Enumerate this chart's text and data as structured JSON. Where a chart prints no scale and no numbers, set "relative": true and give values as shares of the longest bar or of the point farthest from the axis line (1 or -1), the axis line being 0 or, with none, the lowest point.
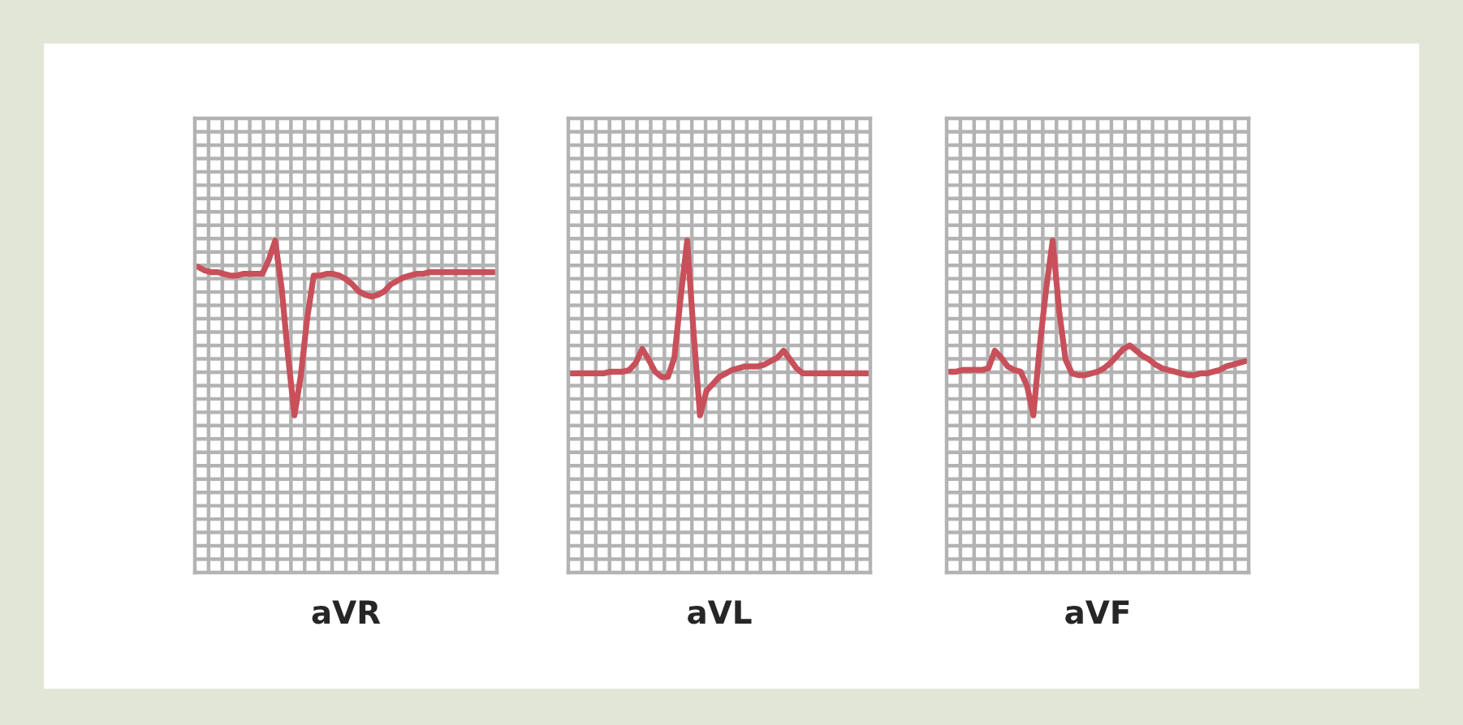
{
  "chart_data": [
    {
      "type": "line",
      "xlabel": "aVR",
      "relative": true,
      "grid": true,
      "color": "#c8505a",
      "categories": [
        null,
        null,
        null,
        null,
        null,
        null,
        null,
        null,
        null,
        null,
        null,
        null,
        null,
        null,
        null,
        null,
        null,
        null,
        null,
        null,
        null,
        null,
        null,
        null,
        null,
        null,
        null,
        null,
        null,
        null,
        null,
        null,
        null,
        null,
        null,
        null,
        null,
        null,
        null,
        null,
        null,
        null,
        null,
        null,
        null,
        null,
        null
      ],
      "values": [
        0.85,
        0.83,
        0.82,
        0.82,
        0.81,
        0.8,
        0.8,
        0.81,
        0.81,
        0.81,
        0.81,
        0.89,
        1.0,
        0.73,
        0.34,
        0,
        0.23,
        0.56,
        0.8,
        0.8,
        0.81,
        0.81,
        0.8,
        0.78,
        0.75,
        0.71,
        0.69,
        0.68,
        0.69,
        0.71,
        0.75,
        0.77,
        0.79,
        0.8,
        0.81,
        0.81,
        0.82,
        0.82,
        0.82,
        0.82,
        0.82,
        0.82,
        0.82,
        0.82,
        0.82,
        0.82,
        0.82
      ]
    },
    {
      "type": "line",
      "xlabel": "aVL",
      "relative": true,
      "grid": true,
      "color": "#c8505a",
      "categories": [
        null,
        null,
        null,
        null,
        null,
        null,
        null,
        null,
        null,
        null,
        null,
        null,
        null,
        null,
        null,
        null,
        null,
        null,
        null,
        null,
        null,
        null,
        null,
        null,
        null,
        null,
        null,
        null,
        null,
        null,
        null,
        null,
        null,
        null,
        null,
        null,
        null,
        null,
        null,
        null,
        null,
        null,
        null,
        null,
        null,
        null,
        null
      ],
      "values": [
        0.24,
        0.24,
        0.24,
        0.24,
        0.24,
        0.24,
        0.25,
        0.25,
        0.25,
        0.26,
        0.3,
        0.38,
        0.32,
        0.25,
        0.22,
        0.22,
        0.33,
        0.68,
        1.0,
        0.47,
        0,
        0.14,
        0.18,
        0.22,
        0.24,
        0.26,
        0.27,
        0.28,
        0.28,
        0.28,
        0.29,
        0.31,
        0.33,
        0.37,
        0.32,
        0.27,
        0.24,
        0.24,
        0.24,
        0.24,
        0.24,
        0.24,
        0.24,
        0.24,
        0.24,
        0.24,
        0.24
      ]
    },
    {
      "type": "line",
      "xlabel": "aVF",
      "relative": true,
      "grid": true,
      "color": "#c8505a",
      "categories": [
        null,
        null,
        null,
        null,
        null,
        null,
        null,
        null,
        null,
        null,
        null,
        null,
        null,
        null,
        null,
        null,
        null,
        null,
        null,
        null,
        null,
        null,
        null,
        null,
        null,
        null,
        null,
        null,
        null,
        null,
        null,
        null,
        null,
        null,
        null,
        null,
        null,
        null,
        null,
        null,
        null,
        null,
        null,
        null,
        null,
        null,
        null
      ],
      "values": [
        0.25,
        0.25,
        0.26,
        0.26,
        0.26,
        0.26,
        0.27,
        0.37,
        0.33,
        0.28,
        0.26,
        0.25,
        0.17,
        0,
        0.4,
        0.73,
        1.0,
        0.6,
        0.32,
        0.24,
        0.23,
        0.23,
        0.24,
        0.25,
        0.27,
        0.3,
        0.34,
        0.38,
        0.4,
        0.37,
        0.34,
        0.32,
        0.29,
        0.27,
        0.26,
        0.25,
        0.24,
        0.23,
        0.23,
        0.24,
        0.24,
        0.25,
        0.26,
        0.28,
        0.29,
        0.3,
        0.31
      ]
    }
  ]
}
